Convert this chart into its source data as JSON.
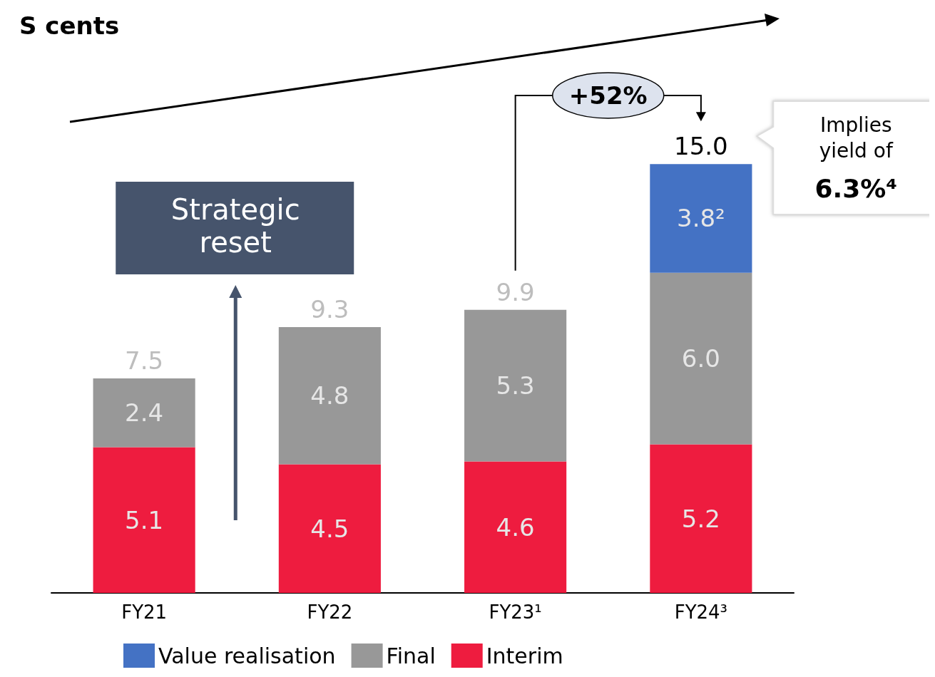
{
  "chart_data": {
    "type": "bar",
    "title": "S cents",
    "categories": [
      "FY21",
      "FY22",
      "FY23¹",
      "FY24³"
    ],
    "stacked": true,
    "series": [
      {
        "name": "Interim",
        "color": "#ee1c3f",
        "values": [
          5.1,
          4.5,
          4.6,
          5.2
        ],
        "value_labels": [
          "5.1",
          "4.5",
          "4.6",
          "5.2"
        ]
      },
      {
        "name": "Final",
        "color": "#989898",
        "values": [
          2.4,
          4.8,
          5.3,
          6.0
        ],
        "value_labels": [
          "2.4",
          "4.8",
          "5.3",
          "6.0"
        ]
      },
      {
        "name": "Value realisation",
        "color": "#4472c4",
        "values": [
          null,
          null,
          null,
          3.8
        ],
        "value_labels": [
          null,
          null,
          null,
          "3.8²"
        ]
      }
    ],
    "totals": [
      "7.5",
      "9.3",
      "9.9",
      "15.0"
    ],
    "annotations": [
      "+52%",
      "Strategic reset",
      "Implies yield of 6.3%⁴"
    ],
    "legend": "bottom",
    "grid": false
  }
}
